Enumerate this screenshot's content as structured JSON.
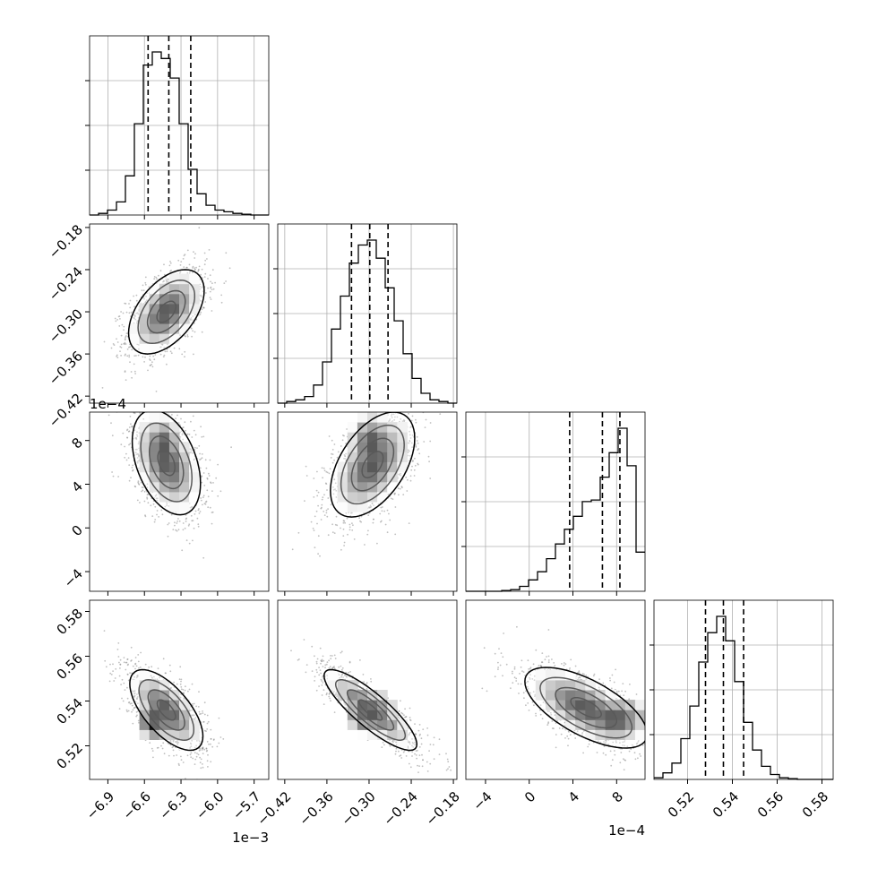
{
  "chart_data": {
    "type": "corner",
    "parameters": [
      {
        "range": [
          -7.05,
          -5.58
        ],
        "ticks": [
          -6.9,
          -6.6,
          -6.3,
          -6.0,
          -5.7
        ],
        "tick_labels": [
          "−6.9",
          "−6.6",
          "−6.3",
          "−6.0",
          "−5.7"
        ],
        "offset_label": "1e−3",
        "quantiles": [
          -6.57,
          -6.4,
          -6.22
        ],
        "hist_edges_start": -7.05,
        "hist_bin_width": 0.0735,
        "hist_counts": [
          0,
          1,
          3,
          8,
          24,
          56,
          92,
          100,
          96,
          84,
          56,
          28,
          13,
          6,
          3,
          2,
          1,
          0.5,
          0,
          0
        ]
      },
      {
        "range": [
          -0.43,
          -0.175
        ],
        "ticks": [
          -0.42,
          -0.36,
          -0.3,
          -0.24,
          -0.18
        ],
        "tick_labels": [
          "−0.42",
          "−0.36",
          "−0.30",
          "−0.24",
          "−0.18"
        ],
        "offset_label": "",
        "quantiles": [
          -0.325,
          -0.299,
          -0.273
        ],
        "hist_edges_start": -0.43,
        "hist_bin_width": 0.01275,
        "hist_counts": [
          0,
          1,
          2,
          4,
          11,
          25,
          45,
          65,
          85,
          96,
          99,
          88,
          70,
          50,
          30,
          15,
          6,
          2,
          1,
          0
        ]
      },
      {
        "range": [
          -5.8,
          10.6
        ],
        "ticks": [
          -4,
          0,
          4,
          8
        ],
        "tick_labels": [
          "−4",
          "0",
          "4",
          "8"
        ],
        "offset_label": "1e−4",
        "quantiles": [
          3.7,
          6.7,
          8.3
        ],
        "hist_edges_start": -5.8,
        "hist_bin_width": 0.82,
        "hist_counts": [
          0,
          0,
          0,
          0,
          0.5,
          1,
          3,
          7,
          12,
          20,
          29,
          38,
          46,
          55,
          56,
          70,
          85,
          100,
          77,
          24
        ]
      },
      {
        "range": [
          0.505,
          0.585
        ],
        "ticks": [
          0.52,
          0.54,
          0.56,
          0.58
        ],
        "tick_labels": [
          "0.52",
          "0.54",
          "0.56",
          "0.58"
        ],
        "offset_label": "",
        "quantiles": [
          0.528,
          0.536,
          0.545
        ],
        "hist_edges_start": 0.505,
        "hist_bin_width": 0.004,
        "hist_counts": [
          1,
          4,
          10,
          25,
          45,
          72,
          90,
          100,
          85,
          60,
          35,
          18,
          8,
          3,
          1,
          0.5,
          0,
          0,
          0,
          0
        ]
      }
    ],
    "pairs": [
      {
        "row": 1,
        "col": 0,
        "mean": [
          -6.42,
          -0.3
        ],
        "sd": [
          0.155,
          0.03
        ],
        "rho": 0.5,
        "mode": [
          -6.4,
          -0.295
        ]
      },
      {
        "row": 2,
        "col": 0,
        "mean": [
          -6.42,
          6.0
        ],
        "sd": [
          0.14,
          2.4
        ],
        "rho": -0.4,
        "mode": [
          -6.45,
          7.5
        ]
      },
      {
        "row": 2,
        "col": 1,
        "mean": [
          -0.295,
          5.8
        ],
        "sd": [
          0.03,
          2.4
        ],
        "rho": 0.5,
        "mode": [
          -0.295,
          7.7
        ]
      },
      {
        "row": 3,
        "col": 0,
        "mean": [
          -6.42,
          0.536
        ],
        "sd": [
          0.15,
          0.009
        ],
        "rho": -0.65,
        "mode": [
          -6.5,
          0.532
        ]
      },
      {
        "row": 3,
        "col": 1,
        "mean": [
          -0.298,
          0.536
        ],
        "sd": [
          0.033,
          0.009
        ],
        "rho": -0.85,
        "mode": [
          -0.298,
          0.535
        ]
      },
      {
        "row": 3,
        "col": 2,
        "mean": [
          5.2,
          0.537
        ],
        "sd": [
          2.8,
          0.009
        ],
        "rho": -0.65,
        "mode": [
          7.8,
          0.532
        ]
      }
    ]
  }
}
